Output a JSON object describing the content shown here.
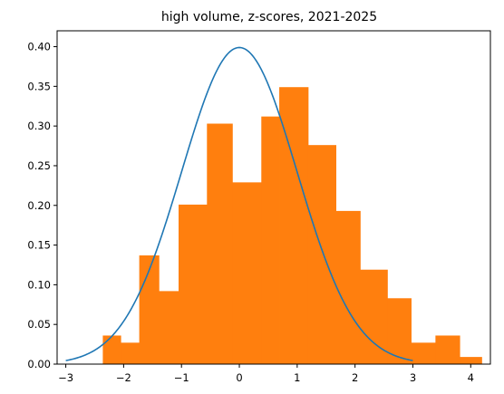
{
  "chart_data": {
    "type": "bar",
    "title": "high volume, z-scores, 2021-2025",
    "xlabel": "",
    "ylabel": "",
    "xlim": [
      -3.15,
      4.34
    ],
    "ylim": [
      0,
      0.42
    ],
    "x_ticks": [
      -3,
      -2,
      -1,
      0,
      1,
      2,
      3,
      4
    ],
    "y_ticks": [
      0.0,
      0.05,
      0.1,
      0.15,
      0.2,
      0.25,
      0.3,
      0.35,
      0.4
    ],
    "x_tick_labels": [
      "−3",
      "−2",
      "−1",
      "0",
      "1",
      "2",
      "3",
      "4"
    ],
    "y_tick_labels": [
      "0.00",
      "0.05",
      "0.10",
      "0.15",
      "0.20",
      "0.25",
      "0.30",
      "0.35",
      "0.40"
    ],
    "grid": false,
    "histogram": {
      "color": "#ff7f0e",
      "bin_edges": [
        -2.36,
        -2.05,
        -1.73,
        -1.39,
        -1.05,
        -0.56,
        -0.12,
        0.38,
        0.69,
        1.19,
        1.67,
        2.09,
        2.56,
        2.97,
        3.39,
        3.81,
        4.19
      ],
      "heights": [
        0.036,
        0.027,
        0.137,
        0.092,
        0.201,
        0.303,
        0.229,
        0.312,
        0.349,
        0.276,
        0.193,
        0.119,
        0.083,
        0.027,
        0.036,
        0.009
      ]
    },
    "curve": {
      "type": "line",
      "color": "#1f77b4",
      "description": "standard normal pdf",
      "x_range": [
        -3,
        3
      ]
    }
  }
}
